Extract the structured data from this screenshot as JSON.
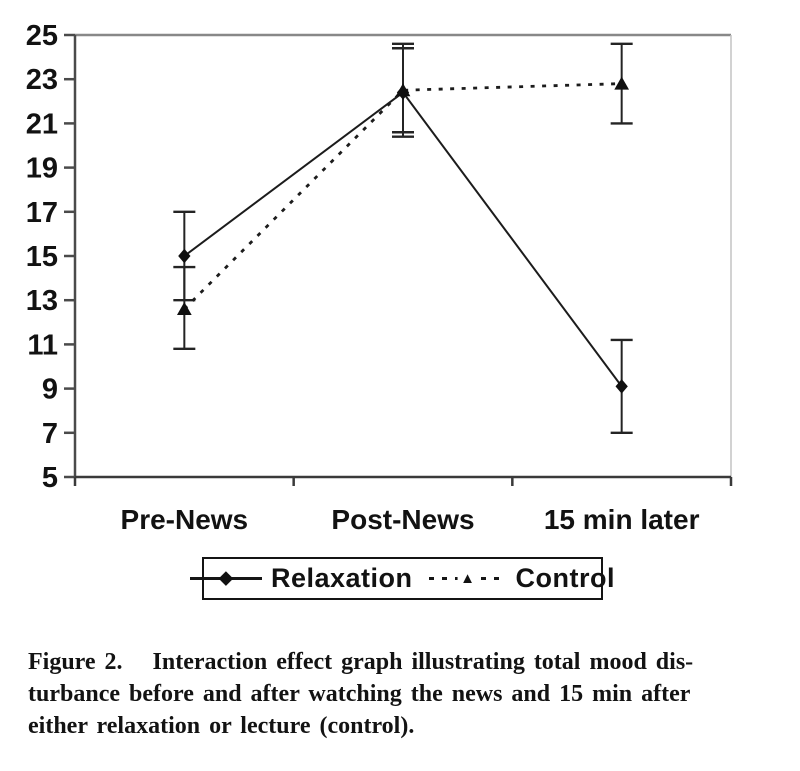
{
  "colors": {
    "ink": "#121212",
    "line": "#1c1c1c",
    "axis": "#4a4a4a",
    "border_top": "#888888",
    "border_right": "#c4c4c4",
    "background": "#ffffff"
  },
  "chart_data": {
    "type": "line",
    "title": "",
    "xlabel": "",
    "ylabel": "",
    "categories": [
      "Pre-News",
      "Post-News",
      "15 min later"
    ],
    "series": [
      {
        "name": "Relaxation",
        "values": [
          15.0,
          22.4,
          9.1
        ],
        "error_high": [
          17.0,
          24.4,
          11.2
        ],
        "error_low": [
          13.0,
          20.4,
          7.0
        ],
        "marker": "diamond",
        "line_style": "solid"
      },
      {
        "name": "Control",
        "values": [
          12.6,
          22.5,
          22.8
        ],
        "error_high": [
          14.5,
          24.6,
          24.6
        ],
        "error_low": [
          10.8,
          20.6,
          21.0
        ],
        "marker": "triangle",
        "line_style": "dashed"
      }
    ],
    "ylim": [
      5,
      25
    ],
    "yticks": [
      5,
      7,
      9,
      11,
      13,
      15,
      17,
      19,
      21,
      23,
      25
    ],
    "grid": false,
    "error_bars": true,
    "legend_position": "bottom"
  },
  "caption": {
    "label": "Figure 2.",
    "lines": [
      "Interaction effect graph illustrating total mood dis-",
      "turbance before and after watching the news and 15 min after",
      "either relaxation or lecture (control)."
    ]
  }
}
